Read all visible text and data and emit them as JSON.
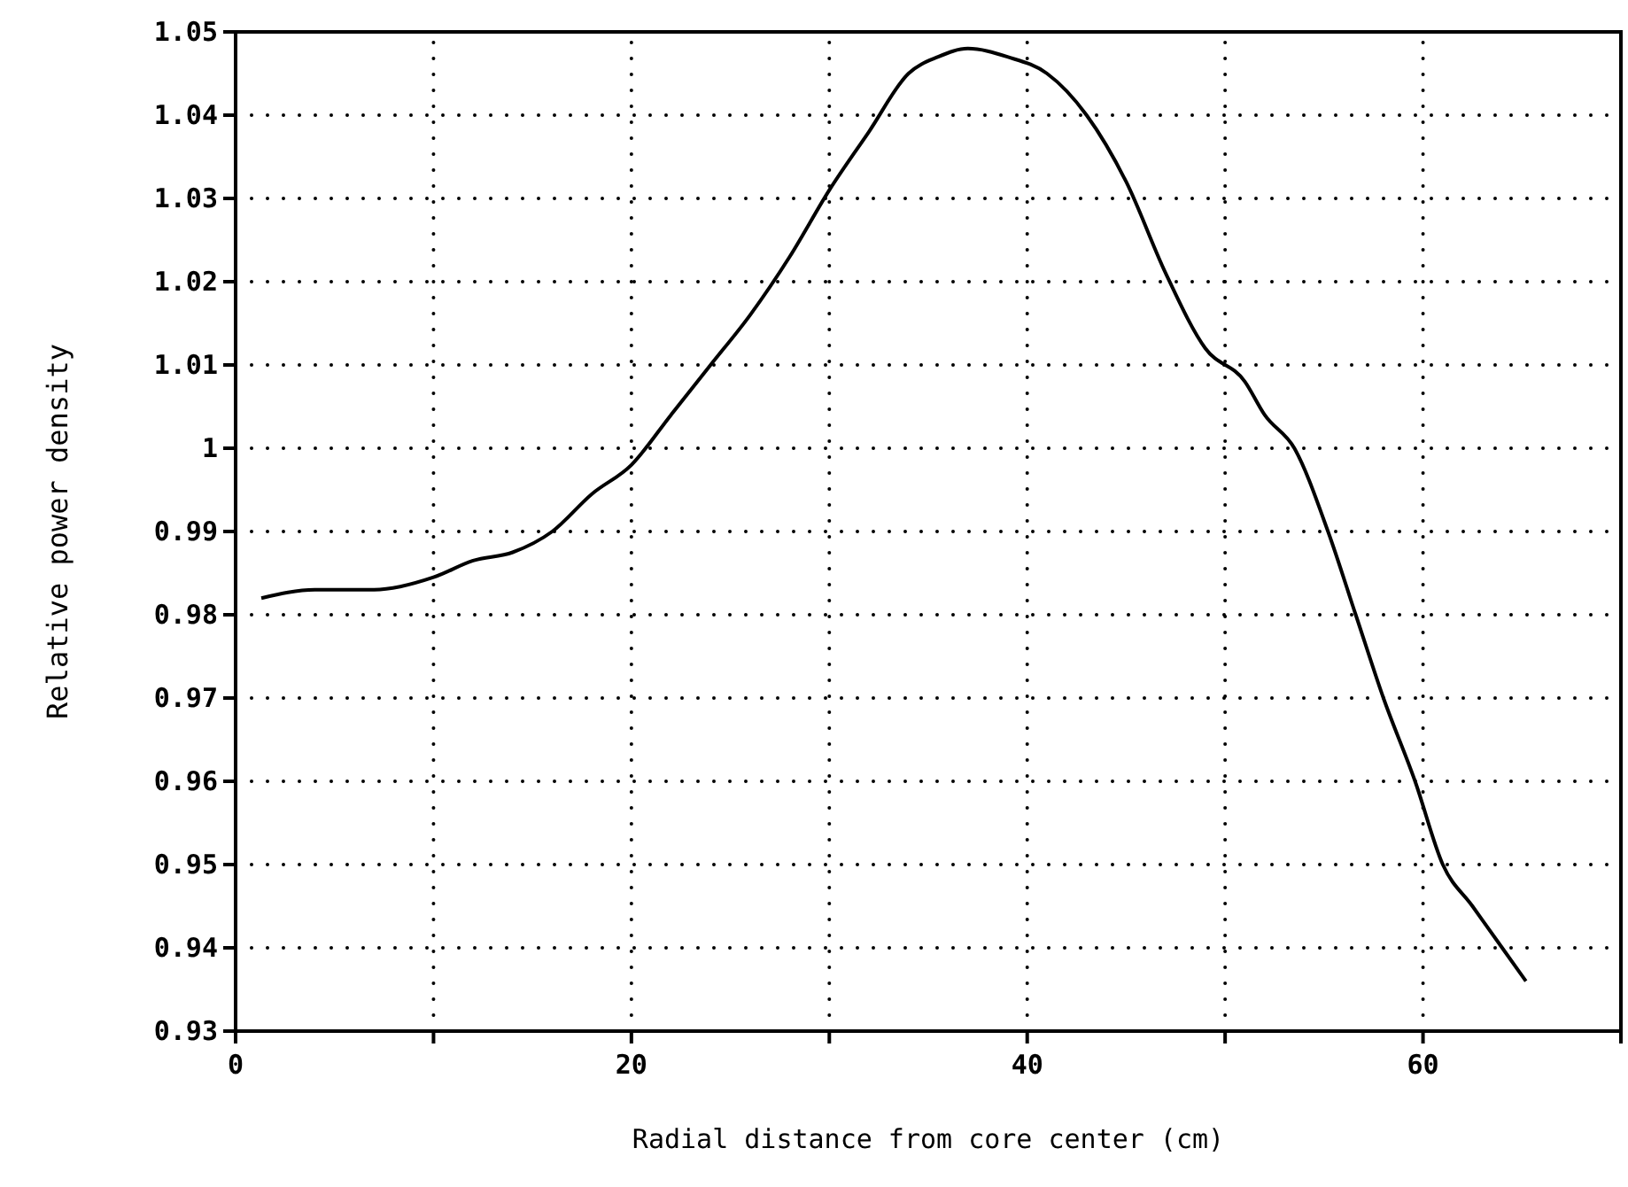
{
  "chart_data": {
    "type": "line",
    "xlabel": "Radial distance from core center (cm)",
    "ylabel": "Relative power density",
    "xlim": [
      0,
      70
    ],
    "xticks": [
      0,
      {
        "value": 10,
        "label": null
      },
      20,
      {
        "value": 30,
        "label": null
      },
      40,
      {
        "value": 50,
        "label": null
      },
      60,
      {
        "value": 70,
        "label": null
      }
    ],
    "ylim": [
      0.93,
      1.05
    ],
    "yticks": [
      0.93,
      0.94,
      0.95,
      0.96,
      0.97,
      0.98,
      0.99,
      1,
      1.01,
      1.02,
      1.03,
      1.04,
      1.05
    ],
    "grid": true,
    "marker": "none",
    "line_style": "solid",
    "series": [
      {
        "color": "#000000",
        "x": [
          1.3,
          4,
          7,
          10,
          12,
          14,
          16,
          18,
          20,
          22,
          24,
          26,
          28,
          30,
          32,
          34,
          35.5,
          37,
          39,
          41,
          43,
          45,
          47,
          49,
          51,
          52,
          53.5,
          55.2,
          56.6,
          58,
          59.6,
          61,
          62.5,
          64,
          65.2
        ],
        "values": [
          0.982,
          0.983,
          0.983,
          0.9845,
          0.9865,
          0.9875,
          0.99,
          0.9945,
          0.998,
          1.004,
          1.01,
          1.016,
          1.023,
          1.031,
          1.038,
          1.045,
          1.047,
          1.048,
          1.047,
          1.045,
          1.04,
          1.032,
          1.021,
          1.012,
          1.008,
          1.004,
          1,
          0.99,
          0.98,
          0.97,
          0.96,
          0.95,
          0.945,
          0.94,
          0.936
        ]
      }
    ]
  }
}
